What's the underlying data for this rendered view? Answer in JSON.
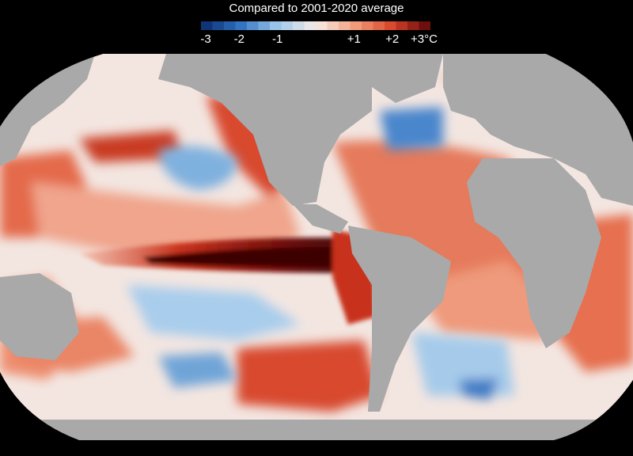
{
  "legend": {
    "title": "Compared to 2001-2020 average",
    "ticks": [
      "-3",
      "-2",
      "-1",
      "+1",
      "+2",
      "+3°C"
    ],
    "tick_values": [
      -3,
      -2,
      -1,
      1,
      2,
      3
    ],
    "range": [
      -3,
      3
    ],
    "steps": 20,
    "colors": {
      "cold_extreme": "#0a2a6b",
      "cold": "#2f6fc0",
      "cool": "#9cc7ea",
      "neutral": "#f6ece8",
      "warm": "#f2a07f",
      "hot": "#d9452b",
      "hot_extreme": "#5a0608"
    }
  },
  "map": {
    "subject": "sea-surface-temperature-anomaly",
    "land_color": "#a9a9a9",
    "background_color": "#000000",
    "projection": "robinson"
  }
}
